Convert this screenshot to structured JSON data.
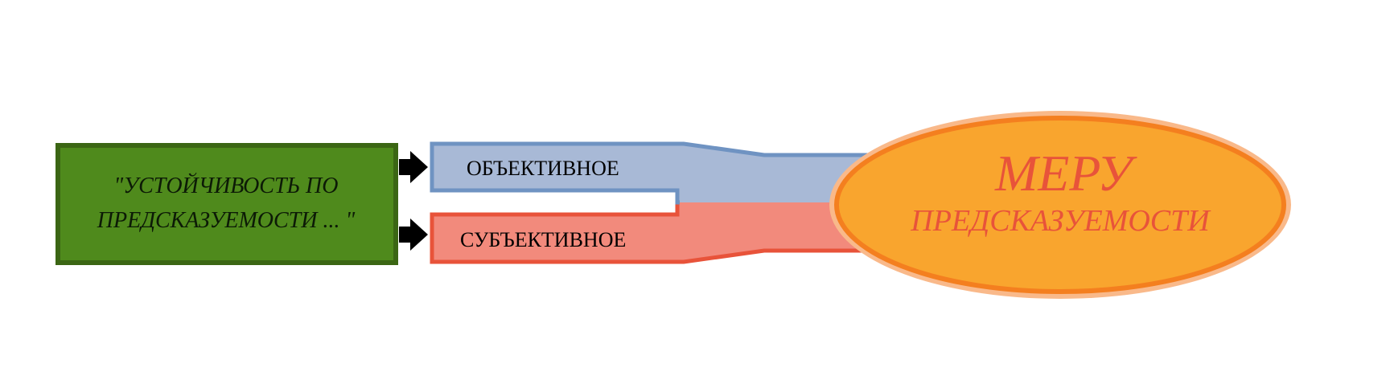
{
  "source_box": {
    "line1": "\"УСТОЙЧИВОСТЬ ПО",
    "line2": "ПРЕДСКАЗУЕМОСТИ ... \""
  },
  "channels": {
    "objective_label": "ОБЪЕКТИВНОЕ",
    "subjective_label": "СУБЪЕКТИВНОЕ"
  },
  "target_ellipse": {
    "title": "МЕРУ",
    "subtitle": "ПРЕДСКАЗУЕМОСТИ"
  },
  "colors": {
    "green_fill": "#4f8a1c",
    "green_border": "#3b6614",
    "blue_fill": "#a8b9d6",
    "blue_border": "#6f93c2",
    "red_fill": "#f28a7c",
    "red_border": "#e8533a",
    "ellipse_fill": "#f9a52e",
    "ellipse_border": "#f47f1f",
    "ellipse_glow": "#f9b98a",
    "ellipse_text": "#e8533a",
    "arrow": "#000000"
  }
}
